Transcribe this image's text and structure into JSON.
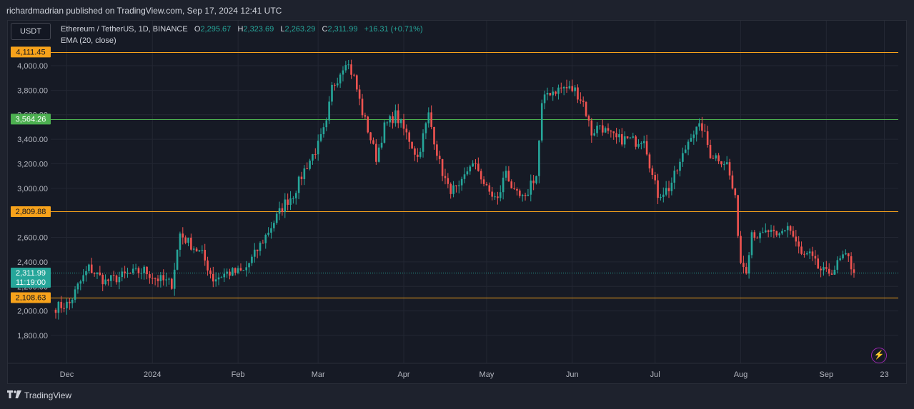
{
  "header": {
    "publisher": "richardmadrian published on TradingView.com, Sep 17, 2024 12:41 UTC"
  },
  "toolbar": {
    "currency": "USDT"
  },
  "legend": {
    "symbol": "Ethereum / TetherUS, 1D, BINANCE",
    "o_label": "O",
    "o_value": "2,295.67",
    "h_label": "H",
    "h_value": "2,323.69",
    "l_label": "L",
    "l_value": "2,263.29",
    "c_label": "C",
    "c_value": "2,311.99",
    "change": "+16.31 (+0.71%)",
    "indicator": "EMA (20, close)"
  },
  "footer": {
    "brand": "TradingView"
  },
  "colors": {
    "up": "#26a69a",
    "down": "#ef5350",
    "orange_line": "#f7a21b",
    "green_line": "#4caf50",
    "background": "#161a25"
  },
  "chart_data": {
    "type": "candlestick",
    "ylim": [
      1800,
      4250
    ],
    "yticks": [
      1800,
      2000,
      2200,
      2400,
      2600,
      2800,
      3000,
      3200,
      3400,
      3600,
      3800,
      4000
    ],
    "ytick_labels": [
      "1,800.00",
      "2,000.00",
      "2,200.00",
      "2,400.00",
      "2,600.00",
      "2,800.00",
      "3,000.00",
      "3,200.00",
      "3,400.00",
      "3,600.00",
      "3,800.00",
      "4,000.00"
    ],
    "xlabels": [
      "Dec",
      "2024",
      "Feb",
      "Mar",
      "Apr",
      "May",
      "Jun",
      "Jul",
      "Aug",
      "Sep",
      "23"
    ],
    "x_start_date": "2023-11-27",
    "xlabel_days": [
      4,
      35,
      66,
      95,
      126,
      156,
      187,
      217,
      248,
      279,
      300
    ],
    "total_days": 305,
    "horizontal_lines": [
      {
        "value": 4111.45,
        "label": "4,111.45",
        "color": "#f7a21b"
      },
      {
        "value": 3564.26,
        "label": "3,564.26",
        "color": "#4caf50"
      },
      {
        "value": 2809.88,
        "label": "2,809.88",
        "color": "#f7a21b"
      },
      {
        "value": 2108.63,
        "label": "2,108.63",
        "color": "#f7a21b"
      }
    ],
    "last_price": {
      "value": 2311.99,
      "label": "2,311.99",
      "countdown": "11:19:00"
    },
    "anchor_closes": [
      [
        0,
        2030
      ],
      [
        5,
        2060
      ],
      [
        8,
        2200
      ],
      [
        12,
        2350
      ],
      [
        18,
        2240
      ],
      [
        25,
        2290
      ],
      [
        32,
        2330
      ],
      [
        36,
        2270
      ],
      [
        42,
        2220
      ],
      [
        45,
        2630
      ],
      [
        48,
        2560
      ],
      [
        53,
        2460
      ],
      [
        57,
        2260
      ],
      [
        62,
        2310
      ],
      [
        68,
        2320
      ],
      [
        72,
        2460
      ],
      [
        78,
        2690
      ],
      [
        83,
        2880
      ],
      [
        86,
        2950
      ],
      [
        90,
        3150
      ],
      [
        95,
        3350
      ],
      [
        98,
        3520
      ],
      [
        100,
        3820
      ],
      [
        102,
        3900
      ],
      [
        105,
        4050
      ],
      [
        108,
        3900
      ],
      [
        111,
        3620
      ],
      [
        113,
        3480
      ],
      [
        116,
        3250
      ],
      [
        119,
        3500
      ],
      [
        123,
        3600
      ],
      [
        128,
        3400
      ],
      [
        131,
        3250
      ],
      [
        135,
        3600
      ],
      [
        139,
        3200
      ],
      [
        142,
        3000
      ],
      [
        146,
        2980
      ],
      [
        150,
        3200
      ],
      [
        153,
        3150
      ],
      [
        156,
        2990
      ],
      [
        160,
        2900
      ],
      [
        163,
        3150
      ],
      [
        166,
        2950
      ],
      [
        170,
        2900
      ],
      [
        172,
        3050
      ],
      [
        174,
        3100
      ],
      [
        176,
        3670
      ],
      [
        178,
        3780
      ],
      [
        181,
        3800
      ],
      [
        184,
        3820
      ],
      [
        188,
        3800
      ],
      [
        191,
        3700
      ],
      [
        194,
        3450
      ],
      [
        197,
        3520
      ],
      [
        200,
        3440
      ],
      [
        203,
        3400
      ],
      [
        207,
        3400
      ],
      [
        210,
        3380
      ],
      [
        213,
        3420
      ],
      [
        216,
        3100
      ],
      [
        218,
        2950
      ],
      [
        222,
        3000
      ],
      [
        226,
        3200
      ],
      [
        230,
        3450
      ],
      [
        234,
        3500
      ],
      [
        237,
        3280
      ],
      [
        240,
        3250
      ],
      [
        243,
        3200
      ],
      [
        246,
        2900
      ],
      [
        248,
        2400
      ],
      [
        250,
        2350
      ],
      [
        252,
        2650
      ],
      [
        255,
        2600
      ],
      [
        258,
        2650
      ],
      [
        261,
        2590
      ],
      [
        265,
        2700
      ],
      [
        268,
        2560
      ],
      [
        270,
        2450
      ],
      [
        273,
        2450
      ],
      [
        276,
        2350
      ],
      [
        279,
        2300
      ],
      [
        282,
        2350
      ],
      [
        285,
        2440
      ],
      [
        287,
        2420
      ],
      [
        289,
        2312
      ]
    ]
  }
}
